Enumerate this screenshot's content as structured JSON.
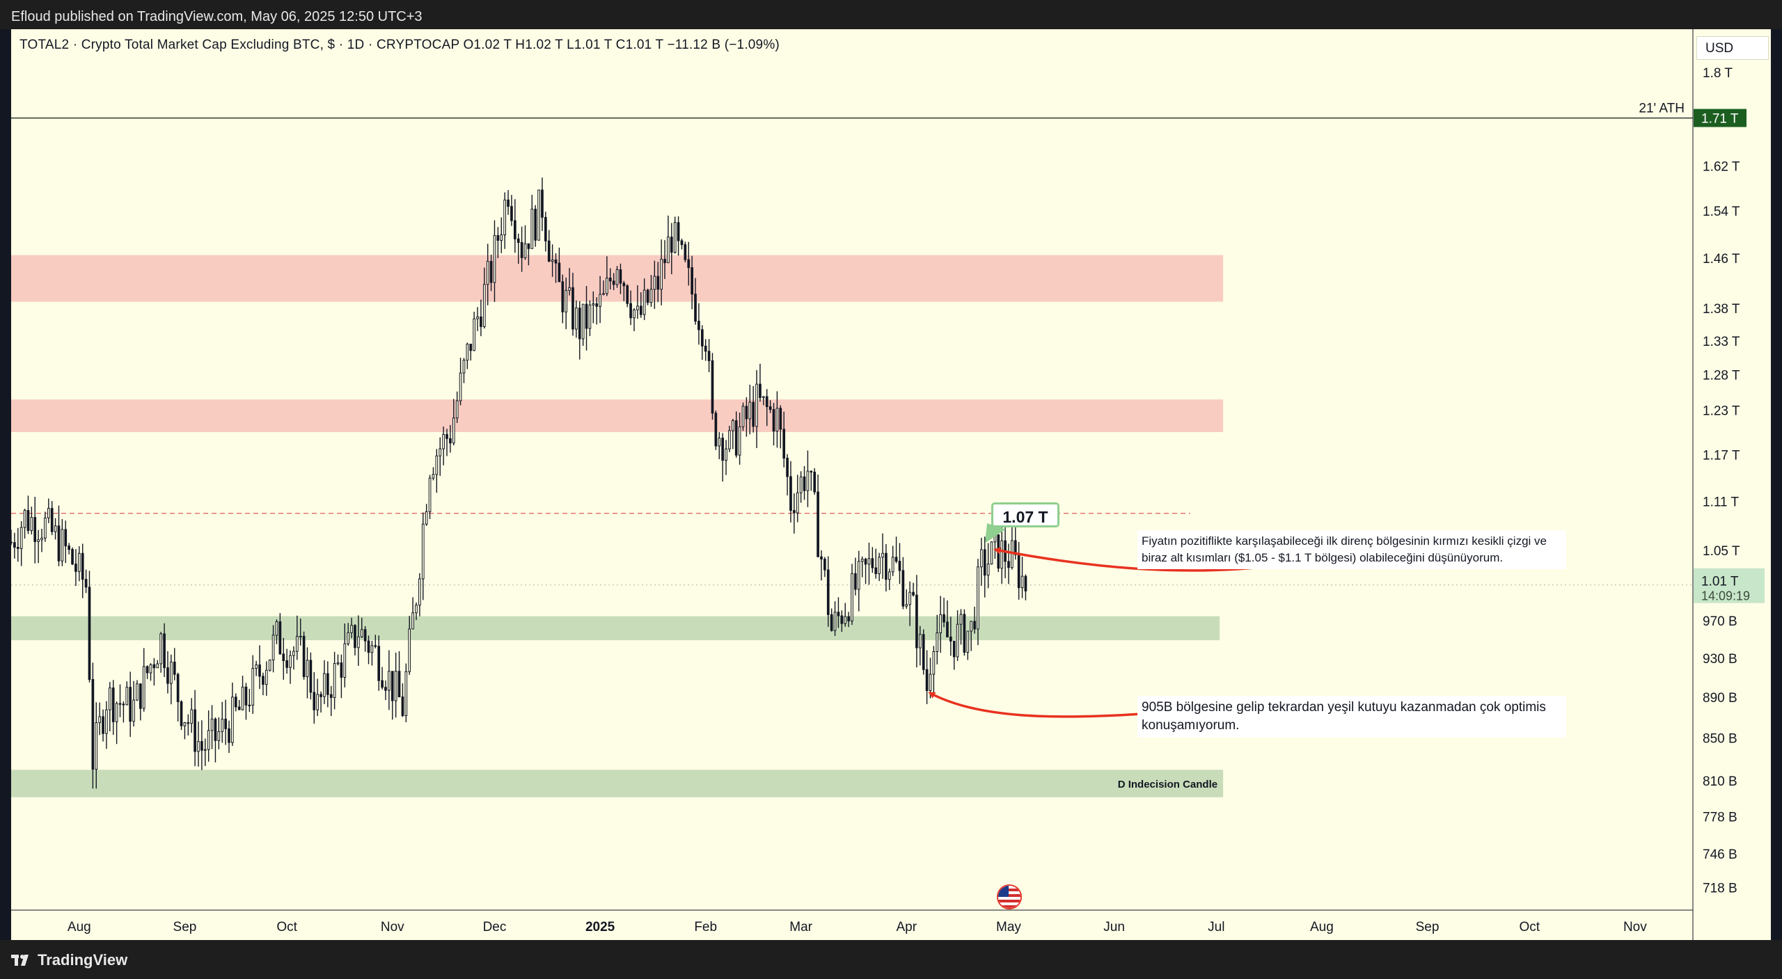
{
  "header": {
    "published": "Efloud published on TradingView.com, May 06, 2025 12:50 UTC+3"
  },
  "footer": {
    "brand": "TradingView"
  },
  "legend": {
    "text": "TOTAL2 · Crypto Total Market Cap Excluding BTC, $ · 1D · CRYPTOCAP   O1.02 T   H1.02 T   L1.01 T   C1.01 T   −11.12 B (−1.09%)"
  },
  "currency_button": "USD",
  "annotations": {
    "callout_value": "1.07 T",
    "ath_label": "21' ATH",
    "ath_price_tag": "1.71 T",
    "current_price_tag": "1.01 T",
    "countdown": "14:09:19",
    "zone_label": "D Indecision Candle",
    "note_resistance": "Fiyatın pozitiflikte karşılaşabileceği ilk direnç bölgesinin kırmızı kesikli çizgi ve biraz alt kısımları ($1.05 - $1.1 T bölgesi) olabileceğini düşünüyorum.",
    "note_support": "905B bölgesine gelip tekrardan yeşil kutuyu kazanmadan çok optimis konuşamıyorum."
  },
  "colors": {
    "background": "#fefee6",
    "candle": "#131722",
    "resistance_zone": "#f9ccc2",
    "support_zone": "#c8dcb9",
    "dashed_line": "#e57373",
    "arrow": "#e8321f",
    "ath_tag": "#1b5e20",
    "price_tag": "#c8e6c9"
  },
  "chart_data": {
    "type": "candlestick",
    "title": "TOTAL2 · Crypto Total Market Cap Excluding BTC, $ · 1D · CRYPTOCAP",
    "y_scale": "log",
    "ylim": [
      700,
      1890
    ],
    "y_ticks": [
      {
        "value": 1800,
        "label": "1.8 T"
      },
      {
        "value": 1620,
        "label": "1.62 T"
      },
      {
        "value": 1540,
        "label": "1.54 T"
      },
      {
        "value": 1460,
        "label": "1.46 T"
      },
      {
        "value": 1380,
        "label": "1.38 T"
      },
      {
        "value": 1330,
        "label": "1.33 T"
      },
      {
        "value": 1280,
        "label": "1.28 T"
      },
      {
        "value": 1230,
        "label": "1.23 T"
      },
      {
        "value": 1170,
        "label": "1.17 T"
      },
      {
        "value": 1110,
        "label": "1.11 T"
      },
      {
        "value": 1050,
        "label": "1.05 T"
      },
      {
        "value": 970,
        "label": "970 B"
      },
      {
        "value": 930,
        "label": "930 B"
      },
      {
        "value": 890,
        "label": "890 B"
      },
      {
        "value": 850,
        "label": "850 B"
      },
      {
        "value": 810,
        "label": "810 B"
      },
      {
        "value": 778,
        "label": "778 B"
      },
      {
        "value": 746,
        "label": "746 B"
      },
      {
        "value": 718,
        "label": "718 B"
      }
    ],
    "x_ticks": [
      {
        "date": "2024-08-01",
        "label": "Aug"
      },
      {
        "date": "2024-09-01",
        "label": "Sep"
      },
      {
        "date": "2024-10-01",
        "label": "Oct"
      },
      {
        "date": "2024-11-01",
        "label": "Nov"
      },
      {
        "date": "2024-12-01",
        "label": "Dec"
      },
      {
        "date": "2025-01-01",
        "label": "2025",
        "bold": true
      },
      {
        "date": "2025-02-01",
        "label": "Feb"
      },
      {
        "date": "2025-03-01",
        "label": "Mar"
      },
      {
        "date": "2025-04-01",
        "label": "Apr"
      },
      {
        "date": "2025-05-01",
        "label": "May"
      },
      {
        "date": "2025-06-01",
        "label": "Jun"
      },
      {
        "date": "2025-07-01",
        "label": "Jul"
      },
      {
        "date": "2025-08-01",
        "label": "Aug"
      },
      {
        "date": "2025-09-01",
        "label": "Sep"
      },
      {
        "date": "2025-10-01",
        "label": "Oct"
      },
      {
        "date": "2025-11-01",
        "label": "Nov"
      }
    ],
    "x_start": "2024-07-12",
    "x_end": "2025-11-18",
    "zones": [
      {
        "kind": "resistance",
        "low": 1390,
        "high": 1465,
        "start": "2024-07-12",
        "end": "2025-07-03"
      },
      {
        "kind": "resistance",
        "low": 1200,
        "high": 1245,
        "start": "2024-07-12",
        "end": "2025-07-03"
      },
      {
        "kind": "support",
        "low": 949,
        "high": 975,
        "start": "2024-07-12",
        "end": "2025-07-02"
      },
      {
        "kind": "support",
        "low": 795,
        "high": 820,
        "start": "2024-07-12",
        "end": "2025-07-03",
        "label": "D Indecision Candle"
      }
    ],
    "ath_level": 1710,
    "resistance_line": 1095,
    "last_close": 1010,
    "close_path": [
      {
        "date": "2024-07-12",
        "close": 1060
      },
      {
        "date": "2024-07-16",
        "close": 1090
      },
      {
        "date": "2024-07-22",
        "close": 1080
      },
      {
        "date": "2024-07-28",
        "close": 1050
      },
      {
        "date": "2024-08-03",
        "close": 1010
      },
      {
        "date": "2024-08-05",
        "close": 830
      },
      {
        "date": "2024-08-09",
        "close": 890
      },
      {
        "date": "2024-08-17",
        "close": 880
      },
      {
        "date": "2024-08-25",
        "close": 950
      },
      {
        "date": "2024-08-31",
        "close": 880
      },
      {
        "date": "2024-09-06",
        "close": 840
      },
      {
        "date": "2024-09-10",
        "close": 850
      },
      {
        "date": "2024-09-18",
        "close": 880
      },
      {
        "date": "2024-09-28",
        "close": 950
      },
      {
        "date": "2024-10-06",
        "close": 930
      },
      {
        "date": "2024-10-10",
        "close": 880
      },
      {
        "date": "2024-10-16",
        "close": 920
      },
      {
        "date": "2024-10-22",
        "close": 960
      },
      {
        "date": "2024-10-28",
        "close": 930
      },
      {
        "date": "2024-11-04",
        "close": 880
      },
      {
        "date": "2024-11-08",
        "close": 1000
      },
      {
        "date": "2024-11-12",
        "close": 1160
      },
      {
        "date": "2024-11-18",
        "close": 1200
      },
      {
        "date": "2024-11-24",
        "close": 1330
      },
      {
        "date": "2024-11-30",
        "close": 1440
      },
      {
        "date": "2024-12-05",
        "close": 1580
      },
      {
        "date": "2024-12-09",
        "close": 1480
      },
      {
        "date": "2024-12-15",
        "close": 1550
      },
      {
        "date": "2024-12-19",
        "close": 1420
      },
      {
        "date": "2024-12-26",
        "close": 1350
      },
      {
        "date": "2025-01-02",
        "close": 1390
      },
      {
        "date": "2025-01-06",
        "close": 1460
      },
      {
        "date": "2025-01-12",
        "close": 1360
      },
      {
        "date": "2025-01-18",
        "close": 1420
      },
      {
        "date": "2025-01-22",
        "close": 1500
      },
      {
        "date": "2025-01-27",
        "close": 1420
      },
      {
        "date": "2025-02-01",
        "close": 1340
      },
      {
        "date": "2025-02-03",
        "close": 1210
      },
      {
        "date": "2025-02-08",
        "close": 1180
      },
      {
        "date": "2025-02-16",
        "close": 1240
      },
      {
        "date": "2025-02-22",
        "close": 1220
      },
      {
        "date": "2025-02-26",
        "close": 1110
      },
      {
        "date": "2025-03-03",
        "close": 1150
      },
      {
        "date": "2025-03-10",
        "close": 960
      },
      {
        "date": "2025-03-16",
        "close": 1000
      },
      {
        "date": "2025-03-24",
        "close": 1050
      },
      {
        "date": "2025-03-29",
        "close": 1030
      },
      {
        "date": "2025-04-03",
        "close": 980
      },
      {
        "date": "2025-04-07",
        "close": 900
      },
      {
        "date": "2025-04-09",
        "close": 960
      },
      {
        "date": "2025-04-14",
        "close": 950
      },
      {
        "date": "2025-04-20",
        "close": 960
      },
      {
        "date": "2025-04-23",
        "close": 1030
      },
      {
        "date": "2025-04-28",
        "close": 1050
      },
      {
        "date": "2025-05-02",
        "close": 1040
      },
      {
        "date": "2025-05-06",
        "close": 1010
      }
    ]
  }
}
